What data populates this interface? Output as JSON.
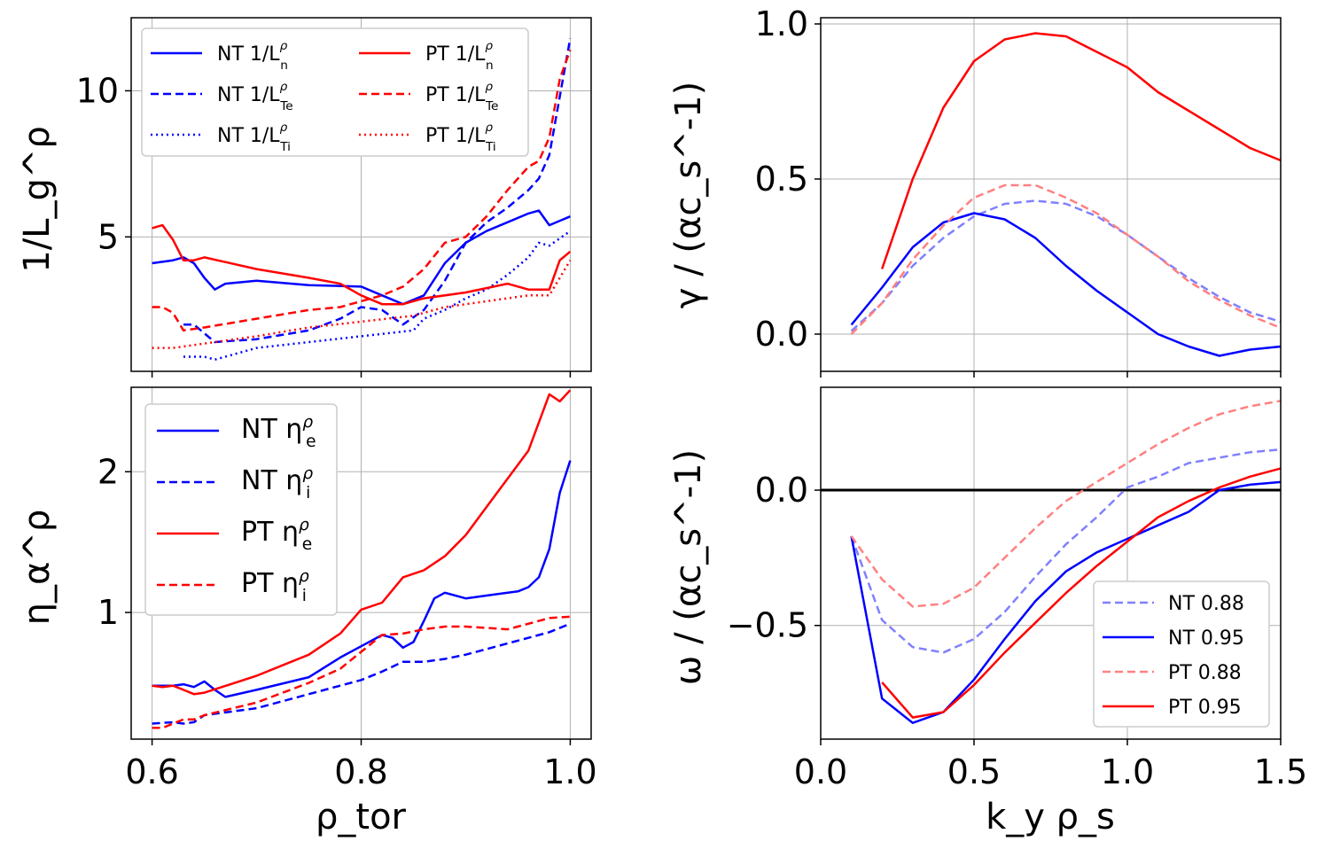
{
  "figure": "four-panel gyrokinetic profile and linear growth-rate comparison",
  "colors": {
    "NT": "#0000ff",
    "PT": "#ff0000",
    "NT_light": "#8080ff",
    "PT_light": "#ff8080",
    "zero_line": "#000000"
  },
  "chart_data": [
    {
      "id": "panel-a",
      "type": "line",
      "ylabel": "1/L_g^ρ",
      "xlabel": "",
      "xlim": [
        0.58,
        1.02
      ],
      "ylim": [
        0.4,
        12.5
      ],
      "xticks": [
        0.6,
        0.8,
        1.0
      ],
      "yticks": [
        5,
        10
      ],
      "ytick_labels": [
        "5",
        "10"
      ],
      "grid": true,
      "legend_position": "top-left, two columns",
      "series": [
        {
          "name": "NT 1/L_n^ρ",
          "base": "NT 1/L",
          "sub": "n",
          "color": "#0000ff",
          "dash": "solid",
          "x": [
            0.6,
            0.62,
            0.63,
            0.64,
            0.65,
            0.66,
            0.67,
            0.7,
            0.75,
            0.8,
            0.82,
            0.84,
            0.86,
            0.88,
            0.9,
            0.92,
            0.94,
            0.96,
            0.97,
            0.98,
            1.0
          ],
          "y": [
            4.1,
            4.2,
            4.3,
            4.1,
            3.6,
            3.2,
            3.4,
            3.5,
            3.35,
            3.3,
            3.0,
            2.7,
            3.0,
            4.1,
            4.8,
            5.2,
            5.5,
            5.8,
            5.9,
            5.4,
            5.7
          ]
        },
        {
          "name": "NT 1/L_Te^ρ",
          "base": "NT 1/L",
          "sub": "Te",
          "color": "#0000ff",
          "dash": "dashed",
          "x": [
            0.63,
            0.64,
            0.66,
            0.7,
            0.75,
            0.78,
            0.8,
            0.82,
            0.84,
            0.86,
            0.88,
            0.9,
            0.92,
            0.94,
            0.96,
            0.97,
            0.98,
            0.99,
            1.0
          ],
          "y": [
            2.0,
            2.0,
            1.4,
            1.5,
            1.8,
            2.2,
            2.6,
            2.5,
            2.0,
            2.5,
            3.5,
            4.8,
            5.5,
            6.0,
            6.6,
            7.0,
            7.8,
            9.8,
            11.8
          ]
        },
        {
          "name": "NT 1/L_Ti^ρ",
          "base": "NT 1/L",
          "sub": "Ti",
          "color": "#0000ff",
          "dash": "dotted",
          "x": [
            0.63,
            0.65,
            0.66,
            0.7,
            0.75,
            0.8,
            0.85,
            0.86,
            0.88,
            0.9,
            0.92,
            0.94,
            0.96,
            0.97,
            0.98,
            1.0
          ],
          "y": [
            0.9,
            0.9,
            0.8,
            1.2,
            1.4,
            1.6,
            1.8,
            2.2,
            2.5,
            2.9,
            3.2,
            3.7,
            4.3,
            4.8,
            4.7,
            5.2
          ]
        },
        {
          "name": "PT 1/L_n^ρ",
          "base": "PT 1/L",
          "sub": "n",
          "color": "#ff0000",
          "dash": "solid",
          "x": [
            0.6,
            0.61,
            0.62,
            0.63,
            0.64,
            0.65,
            0.7,
            0.75,
            0.78,
            0.8,
            0.82,
            0.84,
            0.86,
            0.9,
            0.94,
            0.96,
            0.98,
            0.99,
            1.0
          ],
          "y": [
            5.3,
            5.4,
            4.9,
            4.2,
            4.2,
            4.3,
            3.9,
            3.6,
            3.4,
            3.0,
            2.7,
            2.7,
            2.9,
            3.1,
            3.4,
            3.2,
            3.2,
            4.2,
            4.5
          ]
        },
        {
          "name": "PT 1/L_Te^ρ",
          "base": "PT 1/L",
          "sub": "Te",
          "color": "#ff0000",
          "dash": "dashed",
          "x": [
            0.6,
            0.61,
            0.62,
            0.63,
            0.65,
            0.7,
            0.75,
            0.78,
            0.8,
            0.82,
            0.84,
            0.86,
            0.88,
            0.9,
            0.92,
            0.94,
            0.96,
            0.97,
            0.98,
            0.99,
            1.0
          ],
          "y": [
            2.6,
            2.6,
            2.4,
            1.8,
            1.9,
            2.2,
            2.5,
            2.6,
            2.8,
            3.0,
            3.3,
            3.9,
            4.8,
            5.0,
            5.7,
            6.6,
            7.4,
            7.6,
            8.4,
            10.4,
            11.4
          ]
        },
        {
          "name": "PT 1/L_Ti^ρ",
          "base": "PT 1/L",
          "sub": "Ti",
          "color": "#ff0000",
          "dash": "dotted",
          "x": [
            0.6,
            0.62,
            0.64,
            0.7,
            0.75,
            0.8,
            0.85,
            0.86,
            0.88,
            0.9,
            0.92,
            0.94,
            0.96,
            0.97,
            0.98,
            1.0
          ],
          "y": [
            1.2,
            1.2,
            1.3,
            1.6,
            1.9,
            2.1,
            2.3,
            2.4,
            2.6,
            2.7,
            2.8,
            2.9,
            3.0,
            3.0,
            3.0,
            4.2
          ]
        }
      ]
    },
    {
      "id": "panel-b",
      "type": "line",
      "ylabel": "γ / (αc_s^-1)",
      "xlabel": "",
      "xlim": [
        0.0,
        1.5
      ],
      "ylim": [
        -0.12,
        1.02
      ],
      "xticks": [
        0.0,
        0.5,
        1.0,
        1.5
      ],
      "yticks": [
        0.0,
        0.5,
        1.0
      ],
      "ytick_labels": [
        "0.0",
        "0.5",
        "1.0"
      ],
      "grid": true,
      "series": [
        {
          "name": "NT 0.88",
          "color": "#8080ff",
          "dash": "dashed",
          "x": [
            0.1,
            0.2,
            0.3,
            0.4,
            0.5,
            0.6,
            0.7,
            0.8,
            0.9,
            1.0,
            1.1,
            1.2,
            1.3,
            1.4,
            1.5
          ],
          "y": [
            0.01,
            0.1,
            0.22,
            0.31,
            0.38,
            0.42,
            0.43,
            0.42,
            0.38,
            0.32,
            0.25,
            0.18,
            0.12,
            0.07,
            0.04
          ]
        },
        {
          "name": "NT 0.95",
          "color": "#0000ff",
          "dash": "solid",
          "x": [
            0.1,
            0.2,
            0.3,
            0.4,
            0.5,
            0.6,
            0.7,
            0.8,
            0.9,
            1.0,
            1.1,
            1.2,
            1.3,
            1.4,
            1.5
          ],
          "y": [
            0.03,
            0.15,
            0.28,
            0.36,
            0.39,
            0.37,
            0.31,
            0.22,
            0.14,
            0.07,
            0.0,
            -0.04,
            -0.07,
            -0.05,
            -0.04
          ]
        },
        {
          "name": "PT 0.88",
          "color": "#ff8080",
          "dash": "dashed",
          "x": [
            0.1,
            0.2,
            0.3,
            0.4,
            0.5,
            0.6,
            0.7,
            0.8,
            0.9,
            1.0,
            1.1,
            1.2,
            1.3,
            1.4,
            1.5
          ],
          "y": [
            0.0,
            0.1,
            0.24,
            0.35,
            0.44,
            0.48,
            0.48,
            0.44,
            0.39,
            0.32,
            0.25,
            0.17,
            0.11,
            0.06,
            0.02
          ]
        },
        {
          "name": "PT 0.95",
          "color": "#ff0000",
          "dash": "solid",
          "x": [
            0.2,
            0.3,
            0.4,
            0.5,
            0.6,
            0.7,
            0.8,
            0.9,
            1.0,
            1.1,
            1.2,
            1.3,
            1.4,
            1.5
          ],
          "y": [
            0.21,
            0.5,
            0.73,
            0.88,
            0.95,
            0.97,
            0.96,
            0.91,
            0.86,
            0.78,
            0.72,
            0.66,
            0.6,
            0.56
          ]
        }
      ]
    },
    {
      "id": "panel-c",
      "type": "line",
      "ylabel": "η_α^ρ",
      "xlabel": "ρ_tor",
      "xlim": [
        0.58,
        1.02
      ],
      "ylim": [
        0.1,
        2.6
      ],
      "xticks": [
        0.6,
        0.8,
        1.0
      ],
      "xtick_labels": [
        "0.6",
        "0.8",
        "1.0"
      ],
      "yticks": [
        1,
        2
      ],
      "ytick_labels": [
        "1",
        "2"
      ],
      "grid": true,
      "legend_position": "top-left",
      "series": [
        {
          "name": "NT η_e^ρ",
          "base": "NT η",
          "sub": "e",
          "color": "#0000ff",
          "dash": "solid",
          "x": [
            0.6,
            0.62,
            0.63,
            0.64,
            0.65,
            0.66,
            0.67,
            0.7,
            0.75,
            0.78,
            0.8,
            0.82,
            0.83,
            0.84,
            0.85,
            0.86,
            0.87,
            0.88,
            0.9,
            0.93,
            0.95,
            0.96,
            0.97,
            0.98,
            0.99,
            1.0
          ],
          "y": [
            0.48,
            0.48,
            0.49,
            0.47,
            0.51,
            0.45,
            0.4,
            0.45,
            0.54,
            0.68,
            0.76,
            0.84,
            0.82,
            0.75,
            0.79,
            0.94,
            1.1,
            1.14,
            1.1,
            1.13,
            1.15,
            1.18,
            1.25,
            1.45,
            1.85,
            2.08
          ]
        },
        {
          "name": "NT η_i^ρ",
          "base": "NT η",
          "sub": "i",
          "color": "#0000ff",
          "dash": "dashed",
          "x": [
            0.6,
            0.62,
            0.63,
            0.64,
            0.65,
            0.7,
            0.75,
            0.8,
            0.82,
            0.84,
            0.86,
            0.88,
            0.9,
            0.92,
            0.94,
            0.96,
            0.98,
            1.0
          ],
          "y": [
            0.21,
            0.22,
            0.21,
            0.22,
            0.27,
            0.32,
            0.42,
            0.52,
            0.58,
            0.65,
            0.65,
            0.67,
            0.7,
            0.74,
            0.78,
            0.82,
            0.86,
            0.92
          ]
        },
        {
          "name": "PT η_e^ρ",
          "base": "PT η",
          "sub": "e",
          "color": "#ff0000",
          "dash": "solid",
          "x": [
            0.6,
            0.61,
            0.62,
            0.63,
            0.64,
            0.65,
            0.7,
            0.75,
            0.78,
            0.8,
            0.82,
            0.84,
            0.86,
            0.88,
            0.9,
            0.92,
            0.94,
            0.96,
            0.97,
            0.98,
            0.99,
            1.0
          ],
          "y": [
            0.48,
            0.47,
            0.48,
            0.45,
            0.42,
            0.43,
            0.55,
            0.7,
            0.85,
            1.02,
            1.07,
            1.25,
            1.3,
            1.4,
            1.55,
            1.75,
            1.95,
            2.15,
            2.35,
            2.55,
            2.5,
            2.58
          ]
        },
        {
          "name": "PT η_i^ρ",
          "base": "PT η",
          "sub": "i",
          "color": "#ff0000",
          "dash": "dashed",
          "x": [
            0.6,
            0.61,
            0.62,
            0.63,
            0.64,
            0.65,
            0.7,
            0.75,
            0.78,
            0.8,
            0.82,
            0.84,
            0.86,
            0.88,
            0.9,
            0.92,
            0.94,
            0.96,
            0.98,
            1.0
          ],
          "y": [
            0.18,
            0.18,
            0.21,
            0.24,
            0.24,
            0.27,
            0.36,
            0.5,
            0.6,
            0.72,
            0.84,
            0.85,
            0.88,
            0.9,
            0.9,
            0.89,
            0.88,
            0.92,
            0.96,
            0.97
          ]
        }
      ]
    },
    {
      "id": "panel-d",
      "type": "line",
      "ylabel": "ω / (αc_s^-1)",
      "xlabel": "k_y ρ_s",
      "xlim": [
        0.0,
        1.5
      ],
      "ylim": [
        -0.92,
        0.38
      ],
      "xticks": [
        0.0,
        0.5,
        1.0,
        1.5
      ],
      "xtick_labels": [
        "0.0",
        "0.5",
        "1.0",
        "1.5"
      ],
      "yticks": [
        -0.5,
        0.0
      ],
      "ytick_labels": [
        "−0.5",
        "0.0"
      ],
      "grid": true,
      "legend_position": "bottom-right",
      "zero_line": true,
      "series": [
        {
          "name": "NT 0.88",
          "color": "#8080ff",
          "dash": "dashed",
          "x": [
            0.1,
            0.2,
            0.3,
            0.4,
            0.5,
            0.6,
            0.7,
            0.8,
            0.9,
            1.0,
            1.1,
            1.2,
            1.3,
            1.4,
            1.5
          ],
          "y": [
            -0.17,
            -0.48,
            -0.58,
            -0.6,
            -0.55,
            -0.45,
            -0.32,
            -0.2,
            -0.1,
            0.01,
            0.05,
            0.1,
            0.12,
            0.14,
            0.15
          ]
        },
        {
          "name": "NT 0.95",
          "color": "#0000ff",
          "dash": "solid",
          "x": [
            0.1,
            0.2,
            0.3,
            0.4,
            0.5,
            0.6,
            0.7,
            0.8,
            0.9,
            1.0,
            1.1,
            1.2,
            1.3,
            1.4,
            1.5
          ],
          "y": [
            -0.17,
            -0.77,
            -0.86,
            -0.82,
            -0.7,
            -0.55,
            -0.41,
            -0.3,
            -0.23,
            -0.18,
            -0.13,
            -0.08,
            0.0,
            0.02,
            0.03
          ]
        },
        {
          "name": "PT 0.88",
          "color": "#ff8080",
          "dash": "dashed",
          "x": [
            0.1,
            0.2,
            0.3,
            0.4,
            0.5,
            0.6,
            0.7,
            0.8,
            0.9,
            1.0,
            1.1,
            1.2,
            1.3,
            1.4,
            1.5
          ],
          "y": [
            -0.17,
            -0.33,
            -0.43,
            -0.42,
            -0.36,
            -0.25,
            -0.14,
            -0.04,
            0.03,
            0.1,
            0.17,
            0.23,
            0.28,
            0.31,
            0.33
          ]
        },
        {
          "name": "PT 0.95",
          "color": "#ff0000",
          "dash": "solid",
          "x": [
            0.2,
            0.3,
            0.4,
            0.5,
            0.6,
            0.7,
            0.8,
            0.9,
            1.0,
            1.1,
            1.2,
            1.3,
            1.4,
            1.5
          ],
          "y": [
            -0.71,
            -0.84,
            -0.82,
            -0.72,
            -0.6,
            -0.49,
            -0.38,
            -0.28,
            -0.19,
            -0.1,
            -0.04,
            0.01,
            0.05,
            0.08
          ]
        }
      ]
    }
  ]
}
